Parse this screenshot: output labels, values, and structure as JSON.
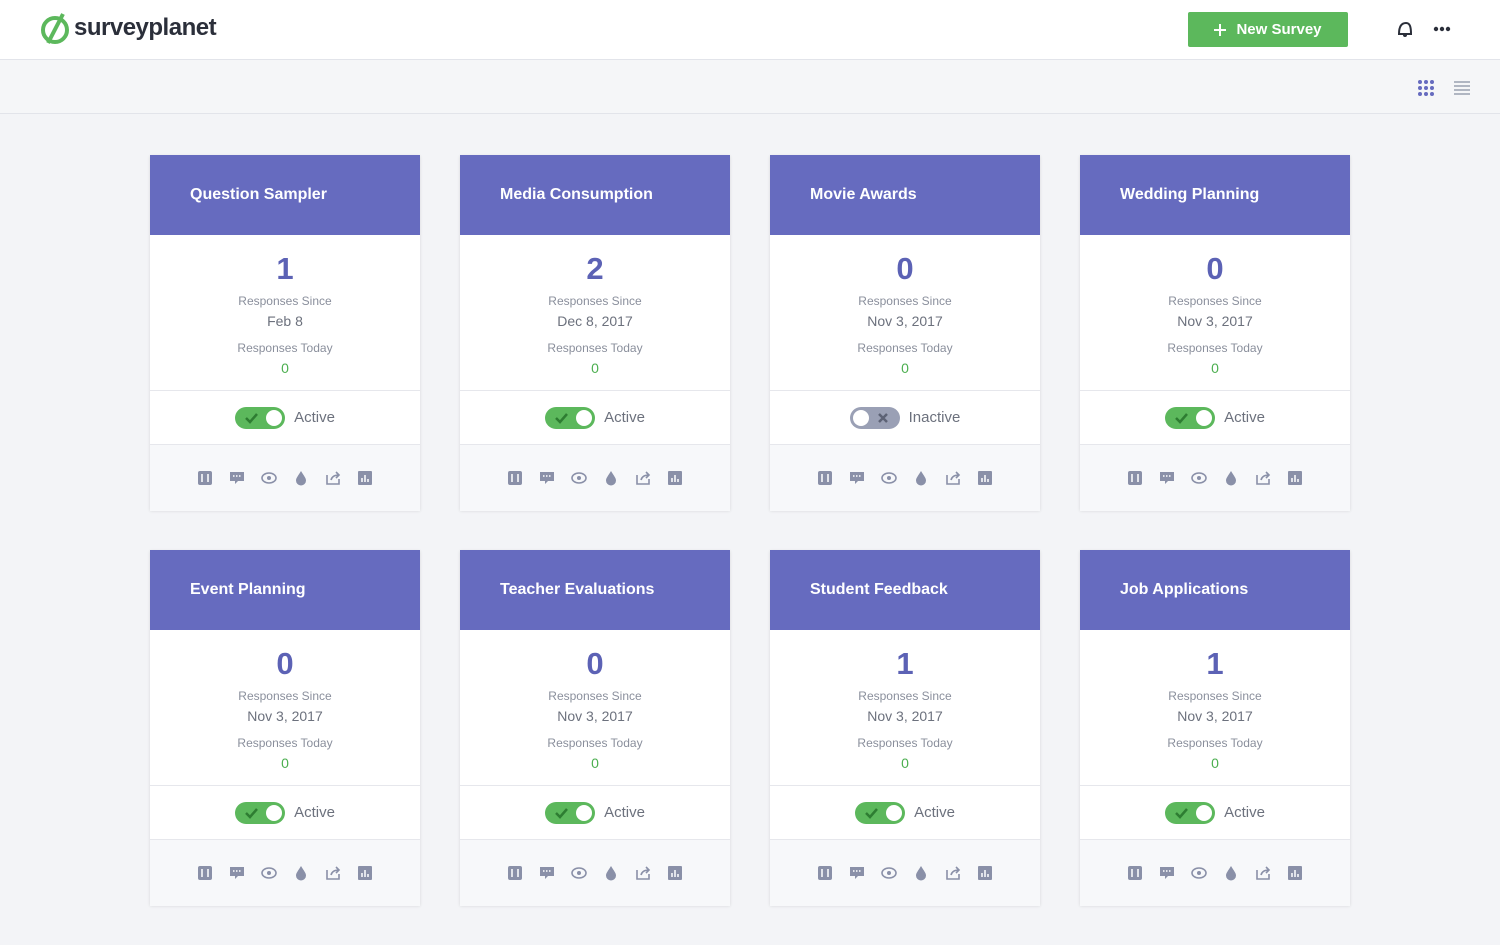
{
  "header": {
    "logo": "surveyplanet",
    "new_survey_button": "New Survey"
  },
  "labels": {
    "responses_since": "Responses Since",
    "responses_today": "Responses Today"
  },
  "surveys": [
    {
      "title": "Question Sampler",
      "responses": 1,
      "since": "Feb 8",
      "today": 0,
      "status": "Active",
      "active": true
    },
    {
      "title": "Media Consumption",
      "responses": 2,
      "since": "Dec 8, 2017",
      "today": 0,
      "status": "Active",
      "active": true
    },
    {
      "title": "Movie Awards",
      "responses": 0,
      "since": "Nov 3, 2017",
      "today": 0,
      "status": "Inactive",
      "active": false
    },
    {
      "title": "Wedding Planning",
      "responses": 0,
      "since": "Nov 3, 2017",
      "today": 0,
      "status": "Active",
      "active": true
    },
    {
      "title": "Event Planning",
      "responses": 0,
      "since": "Nov 3, 2017",
      "today": 0,
      "status": "Active",
      "active": true
    },
    {
      "title": "Teacher Evaluations",
      "responses": 0,
      "since": "Nov 3, 2017",
      "today": 0,
      "status": "Active",
      "active": true
    },
    {
      "title": "Student Feedback",
      "responses": 1,
      "since": "Nov 3, 2017",
      "today": 0,
      "status": "Active",
      "active": true
    },
    {
      "title": "Job Applications",
      "responses": 1,
      "since": "Nov 3, 2017",
      "today": 0,
      "status": "Active",
      "active": true
    }
  ]
}
